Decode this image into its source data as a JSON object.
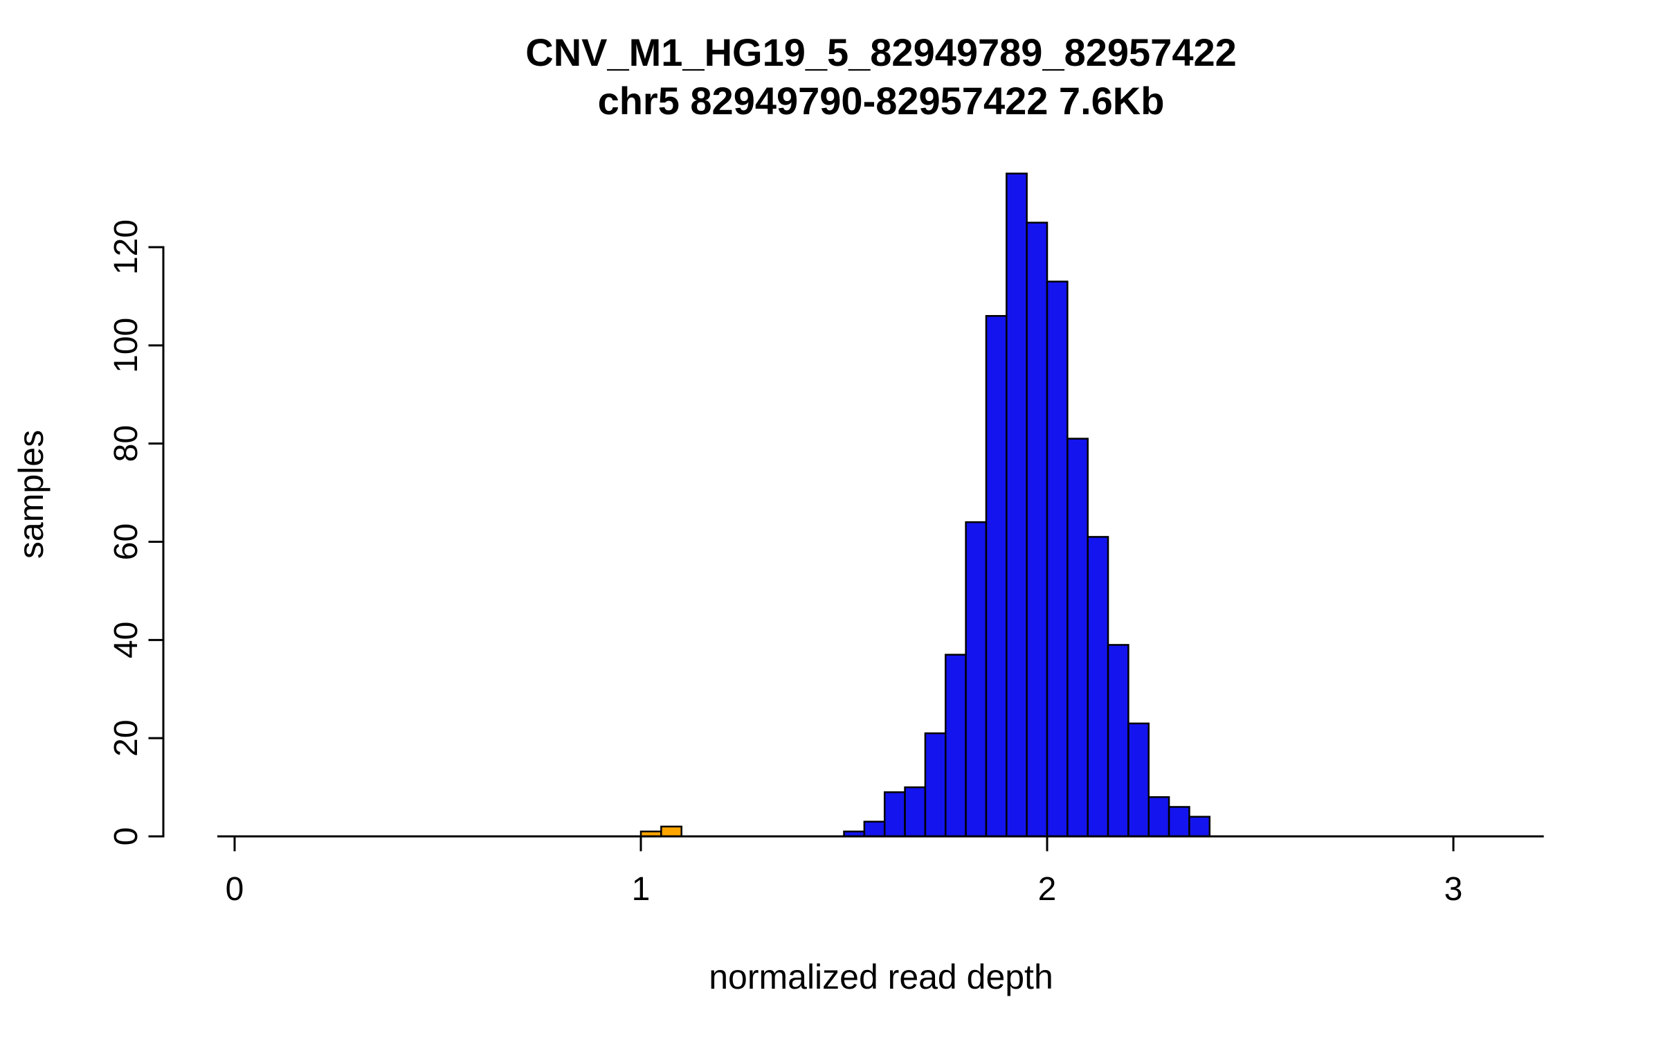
{
  "chart_data": {
    "type": "bar",
    "title": "CNV_M1_HG19_5_82949789_82957422",
    "subtitle": "chr5 82949790-82957422 7.6Kb",
    "xlabel": "normalized read depth",
    "ylabel": "samples",
    "x_ticks": [
      0,
      1,
      2,
      3
    ],
    "y_ticks": [
      0,
      20,
      40,
      60,
      80,
      100,
      120
    ],
    "xlim": [
      -0.04,
      3.22
    ],
    "ylim": [
      0,
      136
    ],
    "bin_width": 0.05,
    "grid": "off",
    "legend": "none",
    "bars": [
      {
        "x": 1.0,
        "height": 1,
        "color": "orange"
      },
      {
        "x": 1.05,
        "height": 2,
        "color": "orange"
      },
      {
        "x": 1.5,
        "height": 1,
        "color": "blue"
      },
      {
        "x": 1.55,
        "height": 3,
        "color": "blue"
      },
      {
        "x": 1.6,
        "height": 9,
        "color": "blue"
      },
      {
        "x": 1.65,
        "height": 10,
        "color": "blue"
      },
      {
        "x": 1.7,
        "height": 21,
        "color": "blue"
      },
      {
        "x": 1.75,
        "height": 37,
        "color": "blue"
      },
      {
        "x": 1.8,
        "height": 64,
        "color": "blue"
      },
      {
        "x": 1.85,
        "height": 106,
        "color": "blue"
      },
      {
        "x": 1.9,
        "height": 135,
        "color": "blue"
      },
      {
        "x": 1.95,
        "height": 125,
        "color": "blue"
      },
      {
        "x": 2.0,
        "height": 113,
        "color": "blue"
      },
      {
        "x": 2.05,
        "height": 81,
        "color": "blue"
      },
      {
        "x": 2.1,
        "height": 61,
        "color": "blue"
      },
      {
        "x": 2.15,
        "height": 39,
        "color": "blue"
      },
      {
        "x": 2.2,
        "height": 23,
        "color": "blue"
      },
      {
        "x": 2.25,
        "height": 8,
        "color": "blue"
      },
      {
        "x": 2.3,
        "height": 6,
        "color": "blue"
      },
      {
        "x": 2.35,
        "height": 4,
        "color": "blue"
      }
    ],
    "colors": {
      "blue": "#1414ee",
      "orange": "#ffa500",
      "axis": "#000000",
      "background": "#ffffff"
    }
  }
}
